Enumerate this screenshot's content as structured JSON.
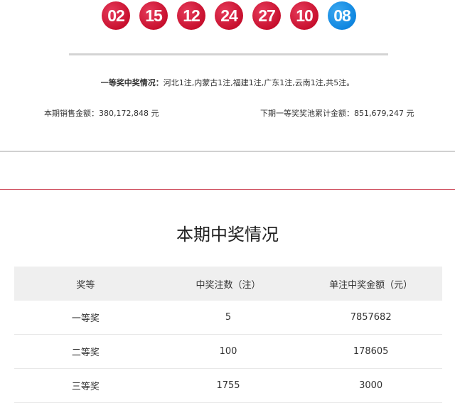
{
  "draw": {
    "red_balls": [
      "02",
      "15",
      "12",
      "24",
      "27",
      "10"
    ],
    "blue_balls": [
      "08"
    ],
    "colors": {
      "red_ball": "#c8102e",
      "blue_ball": "#0f86e0",
      "accent_line": "#d05060"
    }
  },
  "summary": {
    "first_prize_label": "一等奖中奖情况：",
    "first_prize_detail": "河北1注,内蒙古1注,福建1注,广东1注,云南1注,共5注。",
    "sales_label": "本期销售金额：",
    "sales_value": "380,172,848 元",
    "pool_label": "下期一等奖奖池累计金额：",
    "pool_value": "851,679,247 元"
  },
  "section_title": "本期中奖情况",
  "table": {
    "headers": [
      "奖等",
      "中奖注数（注）",
      "单注中奖金额（元）"
    ],
    "rows": [
      [
        "一等奖",
        "5",
        "7857682"
      ],
      [
        "二等奖",
        "100",
        "178605"
      ],
      [
        "三等奖",
        "1755",
        "3000"
      ]
    ]
  }
}
